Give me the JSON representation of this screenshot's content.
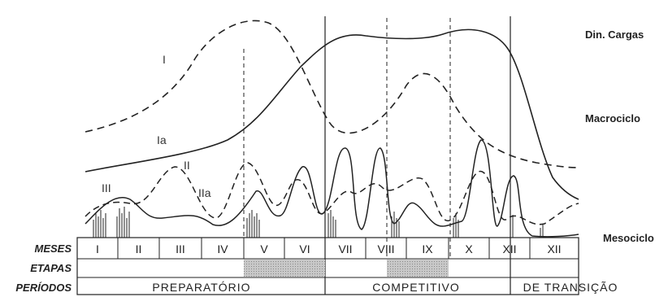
{
  "side_labels": {
    "top": "Din. Cargas",
    "middle": "Macrociclo",
    "bottom": "Mesociclo"
  },
  "curve_labels": [
    "I",
    "Ia",
    "II",
    "IIa",
    "III"
  ],
  "rows": {
    "months_label": "MESES",
    "stages_label": "ETAPAS",
    "periods_label": "PERÍODOS"
  },
  "months": [
    "I",
    "II",
    "III",
    "IV",
    "V",
    "VI",
    "VII",
    "VIII",
    "IX",
    "X",
    "XII",
    "XII"
  ],
  "periods": [
    "PREPARATÓRIO",
    "COMPETITIVO",
    "DE TRANSIÇÃO"
  ],
  "colors": {
    "ink": "#222222",
    "stage_fill": "#b8b8b8"
  }
}
